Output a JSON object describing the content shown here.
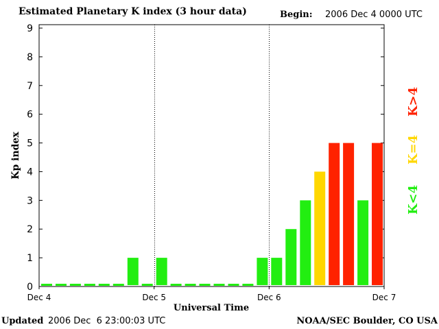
{
  "header": {
    "title": "Estimated Planetary K index (3 hour data)",
    "begin_label": "Begin:",
    "begin_value": "2006 Dec 4 0000 UTC"
  },
  "footer": {
    "updated_label": "Updated",
    "updated_value": "2006 Dec  6 23:00:03 UTC",
    "credit": "NOAA/SEC Boulder, CO USA"
  },
  "legend": {
    "low": "K<4",
    "equal": "K=4",
    "high": "K>4"
  },
  "colors": {
    "low": "#22ee11",
    "equal": "#ffd700",
    "high": "#ff2200"
  },
  "chart_data": {
    "type": "bar",
    "title": "Estimated Planetary K index (3 hour data)",
    "xlabel": "Universal Time",
    "ylabel": "Kp index",
    "ylim": [
      0,
      9
    ],
    "yticks": [
      "0",
      "1",
      "2",
      "3",
      "4",
      "5",
      "6",
      "7",
      "8",
      "9"
    ],
    "xticks": [
      "Dec 4",
      "Dec 5",
      "Dec 6",
      "Dec 7"
    ],
    "day_dividers": [
      "Dec 5",
      "Dec 6"
    ],
    "intervals_total": 24,
    "values": [
      0,
      0,
      0,
      0,
      0,
      0,
      1,
      0,
      1,
      0,
      0,
      0,
      0,
      0,
      0,
      1,
      1,
      2,
      3,
      4,
      5,
      5,
      3,
      5
    ]
  }
}
